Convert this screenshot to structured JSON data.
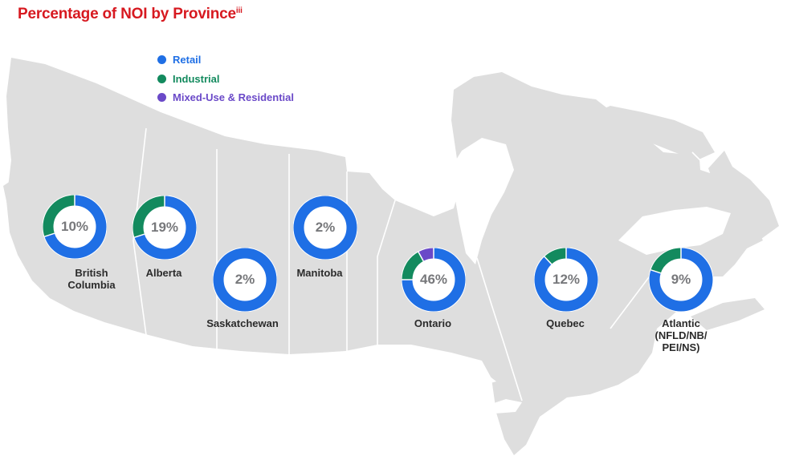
{
  "title": "Percentage of NOI by Province",
  "title_superscript": "iii",
  "colors": {
    "retail": "#1f6fe5",
    "industrial": "#138a5e",
    "mixed": "#6a49c8",
    "title": "#d71920",
    "map_fill": "#dedede"
  },
  "legend": [
    {
      "label": "Retail",
      "color": "#1f6fe5"
    },
    {
      "label": "Industrial",
      "color": "#138a5e"
    },
    {
      "label": "Mixed-Use & Residential",
      "color": "#6a49c8"
    }
  ],
  "chart_data": {
    "type": "pie",
    "series_names": [
      "Retail",
      "Industrial",
      "Mixed-Use & Residential"
    ],
    "provinces": [
      {
        "name": "British\nColumbia",
        "value": "10%",
        "shares": {
          "retail": 0.7,
          "industrial": 0.3,
          "mixed": 0.0
        }
      },
      {
        "name": "Alberta",
        "value": "19%",
        "shares": {
          "retail": 0.7,
          "industrial": 0.3,
          "mixed": 0.0
        }
      },
      {
        "name": "Saskatchewan",
        "value": "2%",
        "shares": {
          "retail": 1.0,
          "industrial": 0.0,
          "mixed": 0.0
        }
      },
      {
        "name": "Manitoba",
        "value": "2%",
        "shares": {
          "retail": 1.0,
          "industrial": 0.0,
          "mixed": 0.0
        }
      },
      {
        "name": "Ontario",
        "value": "46%",
        "shares": {
          "retail": 0.75,
          "industrial": 0.17,
          "mixed": 0.08
        }
      },
      {
        "name": "Quebec",
        "value": "12%",
        "shares": {
          "retail": 0.88,
          "industrial": 0.12,
          "mixed": 0.0
        }
      },
      {
        "name": "Atlantic\n(NFLD/NB/\nPEI/NS)",
        "value": "9%",
        "shares": {
          "retail": 0.8,
          "industrial": 0.2,
          "mixed": 0.0
        }
      }
    ]
  }
}
